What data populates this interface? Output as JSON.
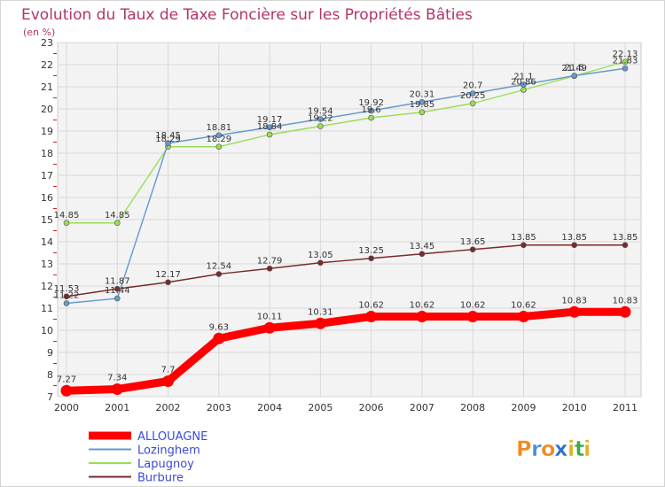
{
  "chart_data": {
    "type": "line",
    "title": "Evolution du Taux de Taxe Foncière sur les Propriétés Bâties",
    "subtitle": "(en %)",
    "xlabel": "",
    "ylabel": "",
    "ylim": [
      7,
      23
    ],
    "yticks": [
      7,
      8,
      9,
      10,
      11,
      12,
      13,
      14,
      15,
      16,
      17,
      18,
      19,
      20,
      21,
      22,
      23
    ],
    "categories": [
      "2000",
      "2001",
      "2002",
      "2003",
      "2004",
      "2005",
      "2006",
      "2007",
      "2008",
      "2009",
      "2010",
      "2011"
    ],
    "series": [
      {
        "name": "ALLOUAGNE",
        "color": "#ff0000",
        "values": [
          7.27,
          7.34,
          7.7,
          9.63,
          10.11,
          10.31,
          10.62,
          10.62,
          10.62,
          10.62,
          10.83,
          10.83
        ],
        "labels": [
          "7.27",
          "7.34",
          "7.7",
          "9.63",
          "10.11",
          "10.31",
          "10.62",
          "10.62",
          "10.62",
          "10.62",
          "10.83",
          "10.83"
        ]
      },
      {
        "name": "Lozinghem",
        "color": "#6699cc",
        "values": [
          11.22,
          11.44,
          18.45,
          18.81,
          19.17,
          19.54,
          19.92,
          20.31,
          20.7,
          21.1,
          21.5,
          21.83
        ],
        "labels": [
          "11.22",
          "11.44",
          "18.45",
          "18.81",
          "19.17",
          "19.54",
          "19.92",
          "20.31",
          "20.7",
          "21.1",
          "21.5",
          "21.83"
        ]
      },
      {
        "name": "Lapugnoy",
        "color": "#99dd55",
        "values": [
          14.85,
          14.85,
          18.29,
          18.29,
          18.84,
          19.22,
          19.6,
          19.85,
          20.25,
          20.86,
          21.49,
          22.13
        ],
        "labels": [
          "14.85",
          "14.85",
          "18.29",
          "18.29",
          "18.84",
          "19.22",
          "19.6",
          "19.85",
          "20.25",
          "20.86",
          "21.49",
          "22.13"
        ]
      },
      {
        "name": "Burbure",
        "color": "#7a2a2a",
        "values": [
          11.53,
          11.87,
          12.17,
          12.54,
          12.79,
          13.05,
          13.25,
          13.45,
          13.65,
          13.85,
          13.85,
          13.85
        ],
        "labels": [
          "11.53",
          "11.87",
          "12.17",
          "12.54",
          "12.79",
          "13.05",
          "13.25",
          "13.45",
          "13.65",
          "13.85",
          "13.85",
          "13.85"
        ]
      }
    ]
  },
  "legend": {
    "items": [
      "ALLOUAGNE",
      "Lozinghem",
      "Lapugnoy",
      "Burbure"
    ]
  },
  "logo": {
    "text": "Proxiti",
    "letters": [
      "P",
      "r",
      "o",
      "x",
      "i",
      "t",
      "i"
    ],
    "colors": [
      "#f28a1e",
      "#4a90d9",
      "#f28a1e",
      "#2a6fc9",
      "#e0b21a",
      "#3aa84a",
      "#e0b21a"
    ]
  }
}
